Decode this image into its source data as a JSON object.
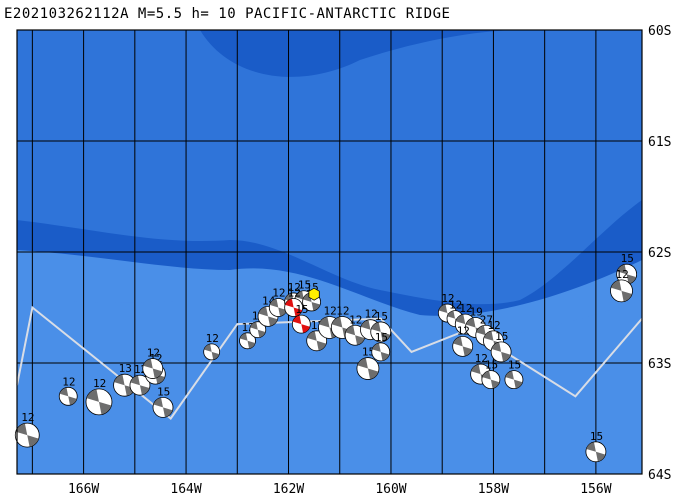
{
  "title": "E202103262112A M=5.5 h= 10 PACIFIC-ANTARCTIC RIDGE",
  "map": {
    "lon_range": [
      -167.3,
      -155.1
    ],
    "lat_range": [
      -64.0,
      -60.0
    ],
    "colors": {
      "deep": "#1a5cc8",
      "mid": "#2f74d9",
      "shallow": "#4a8fe8",
      "ridge": "#6aa6ef",
      "grid": "#000000",
      "plate_boundary": "#d8dde6",
      "beachball_fill": "#ffffff",
      "beachball_comp": "#6d6d6d",
      "mainshock_comp": "#e01010",
      "epicenter": "#ffee00"
    },
    "lon_ticks": [
      {
        "value": -166,
        "label": "166W"
      },
      {
        "value": -164,
        "label": "164W"
      },
      {
        "value": -162,
        "label": "162W"
      },
      {
        "value": -160,
        "label": "160W"
      },
      {
        "value": -158,
        "label": "158W"
      },
      {
        "value": -156,
        "label": "156W"
      }
    ],
    "lat_ticks": [
      {
        "value": -60,
        "label": "60S"
      },
      {
        "value": -61,
        "label": "61S"
      },
      {
        "value": -62,
        "label": "62S"
      },
      {
        "value": -63,
        "label": "63S"
      },
      {
        "value": -64,
        "label": "64S"
      }
    ],
    "epicenter": {
      "lon": -161.5,
      "lat": -62.38
    },
    "plate_boundary": [
      [
        -167.3,
        -63.2
      ],
      [
        -167.0,
        -62.5
      ],
      [
        -164.3,
        -63.5
      ],
      [
        -163.0,
        -62.65
      ],
      [
        -160.2,
        -62.6
      ],
      [
        -159.6,
        -62.9
      ],
      [
        -158.5,
        -62.7
      ],
      [
        -157.6,
        -62.95
      ],
      [
        -156.4,
        -63.3
      ],
      [
        -155.1,
        -62.6
      ]
    ],
    "events": [
      {
        "lon": -167.1,
        "lat": -63.65,
        "label": "12",
        "r": 12
      },
      {
        "lon": -166.3,
        "lat": -63.3,
        "label": "12",
        "r": 9
      },
      {
        "lon": -165.7,
        "lat": -63.35,
        "label": "12",
        "r": 13
      },
      {
        "lon": -165.2,
        "lat": -63.2,
        "label": "13",
        "r": 11
      },
      {
        "lon": -164.9,
        "lat": -63.2,
        "label": "12",
        "r": 10
      },
      {
        "lon": -164.6,
        "lat": -63.1,
        "label": "12",
        "r": 10
      },
      {
        "lon": -164.65,
        "lat": -63.05,
        "label": "12",
        "r": 10
      },
      {
        "lon": -164.45,
        "lat": -63.4,
        "label": "15",
        "r": 10
      },
      {
        "lon": -163.5,
        "lat": -62.9,
        "label": "12",
        "r": 8
      },
      {
        "lon": -162.8,
        "lat": -62.8,
        "label": "12",
        "r": 8
      },
      {
        "lon": -162.6,
        "lat": -62.7,
        "label": "12",
        "r": 8
      },
      {
        "lon": -162.4,
        "lat": -62.58,
        "label": "14",
        "r": 10
      },
      {
        "lon": -162.2,
        "lat": -62.5,
        "label": "12",
        "r": 9
      },
      {
        "lon": -161.9,
        "lat": -62.45,
        "label": "12",
        "r": 9
      },
      {
        "lon": -161.7,
        "lat": -62.43,
        "label": "15",
        "r": 9
      },
      {
        "lon": -161.55,
        "lat": -62.45,
        "label": "15",
        "r": 9
      },
      {
        "lon": -161.45,
        "lat": -62.8,
        "label": "12",
        "r": 10
      },
      {
        "lon": -161.2,
        "lat": -62.68,
        "label": "12",
        "r": 11
      },
      {
        "lon": -160.95,
        "lat": -62.68,
        "label": "12",
        "r": 11
      },
      {
        "lon": -160.7,
        "lat": -62.75,
        "label": "12",
        "r": 10
      },
      {
        "lon": -160.4,
        "lat": -62.7,
        "label": "12",
        "r": 10
      },
      {
        "lon": -160.2,
        "lat": -62.72,
        "label": "15",
        "r": 10
      },
      {
        "lon": -160.45,
        "lat": -63.05,
        "label": "15",
        "r": 11
      },
      {
        "lon": -160.2,
        "lat": -62.9,
        "label": "15",
        "r": 9
      },
      {
        "lon": -158.9,
        "lat": -62.55,
        "label": "12",
        "r": 9
      },
      {
        "lon": -158.75,
        "lat": -62.6,
        "label": "12",
        "r": 8
      },
      {
        "lon": -158.55,
        "lat": -62.65,
        "label": "12",
        "r": 10
      },
      {
        "lon": -158.35,
        "lat": -62.68,
        "label": "19",
        "r": 10
      },
      {
        "lon": -158.15,
        "lat": -62.75,
        "label": "27",
        "r": 10
      },
      {
        "lon": -158.0,
        "lat": -62.8,
        "label": "12",
        "r": 10
      },
      {
        "lon": -157.85,
        "lat": -62.9,
        "label": "15",
        "r": 10
      },
      {
        "lon": -158.25,
        "lat": -63.1,
        "label": "12",
        "r": 10
      },
      {
        "lon": -158.05,
        "lat": -63.15,
        "label": "15",
        "r": 9
      },
      {
        "lon": -157.6,
        "lat": -63.15,
        "label": "15",
        "r": 9
      },
      {
        "lon": -158.6,
        "lat": -62.85,
        "label": "12",
        "r": 10
      },
      {
        "lon": -156.0,
        "lat": -63.8,
        "label": "15",
        "r": 10
      },
      {
        "lon": -155.4,
        "lat": -62.2,
        "label": "15",
        "r": 10
      },
      {
        "lon": -155.5,
        "lat": -62.35,
        "label": "12",
        "r": 11
      }
    ],
    "mainshocks": [
      {
        "lon": -161.9,
        "lat": -62.5,
        "label": "12"
      },
      {
        "lon": -161.75,
        "lat": -62.65,
        "label": "15"
      }
    ]
  }
}
